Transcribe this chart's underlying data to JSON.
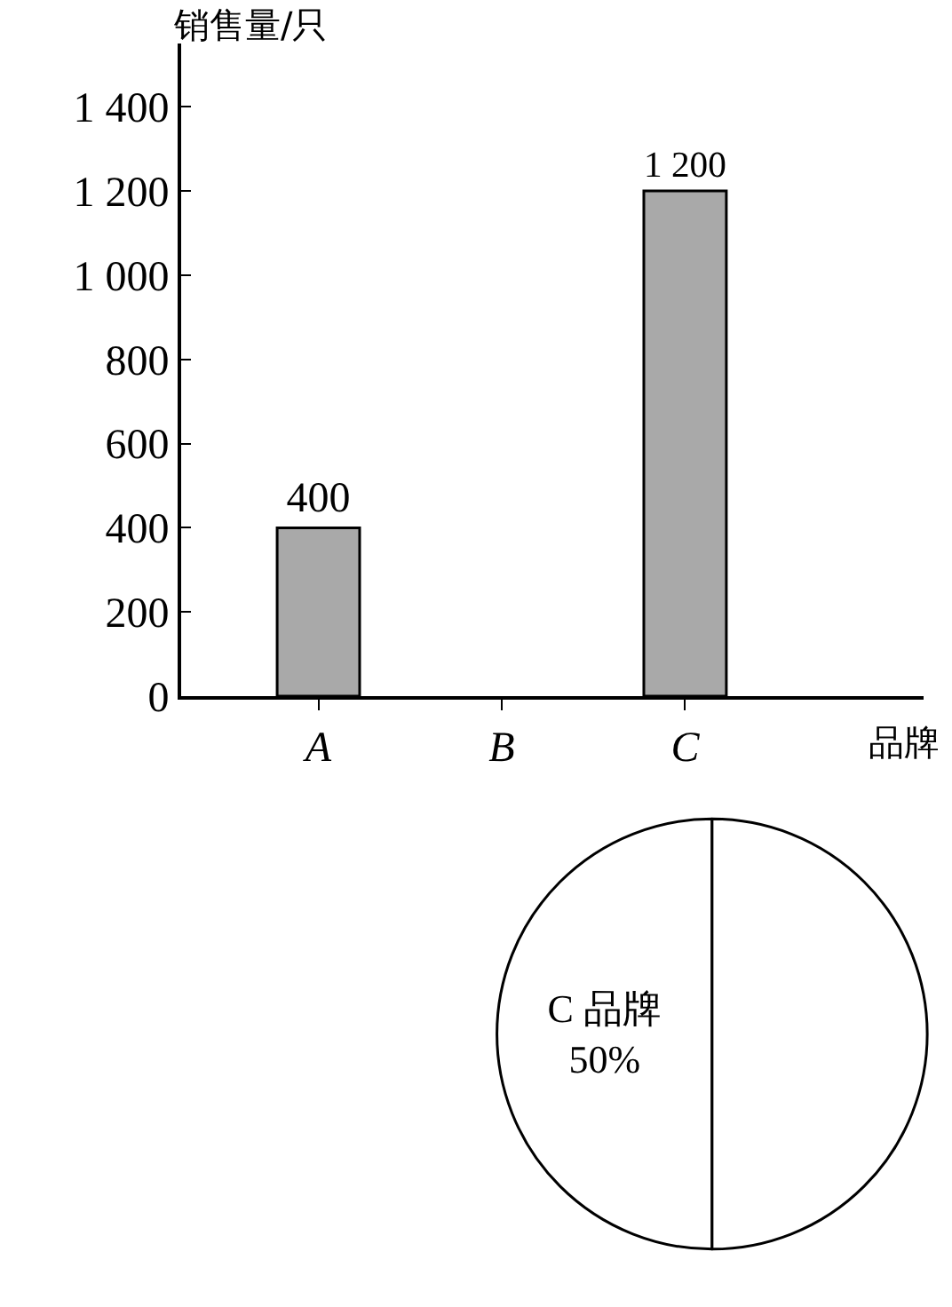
{
  "chart_data": [
    {
      "type": "bar",
      "ylabel": "销售量/只",
      "xlabel": "品牌",
      "categories": [
        "A",
        "B",
        "C"
      ],
      "values": [
        400,
        null,
        1200
      ],
      "value_labels": [
        "400",
        null,
        "1 200"
      ],
      "color": "#a9a9a9",
      "ylim": [
        0,
        1550
      ],
      "yticks": [
        0,
        200,
        400,
        600,
        800,
        {
          "value": 1000,
          "label": "1 000"
        },
        {
          "value": 1200,
          "label": "1 200"
        },
        {
          "value": 1400,
          "label": "1 400"
        }
      ],
      "relative": false
    },
    {
      "type": "pie",
      "categories": [
        "C 品牌",
        null
      ],
      "values": [
        50,
        50
      ],
      "value_labels": [
        "50%",
        null
      ],
      "colors": [
        "#ffffff",
        "#ffffff"
      ]
    }
  ]
}
